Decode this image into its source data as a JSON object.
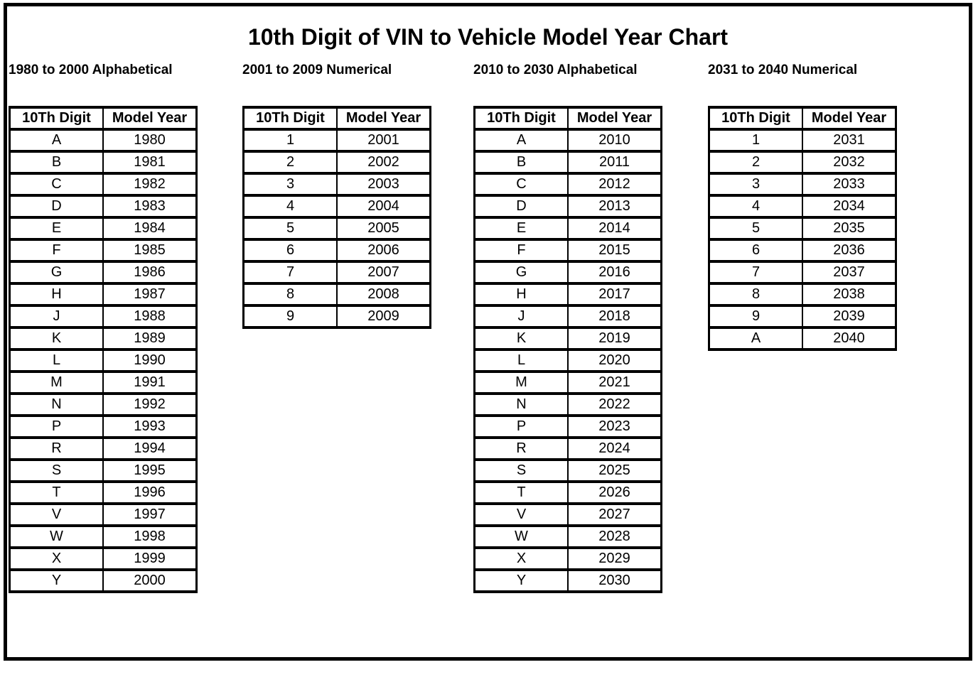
{
  "page": {
    "title": "10th Digit of VIN to Vehicle Model Year Chart"
  },
  "chart_data": [
    {
      "type": "table",
      "section_label": "1980 to 2000 Alphabetical",
      "columns": [
        "10Th Digit",
        "Model Year"
      ],
      "rows": [
        [
          "A",
          "1980"
        ],
        [
          "B",
          "1981"
        ],
        [
          "C",
          "1982"
        ],
        [
          "D",
          "1983"
        ],
        [
          "E",
          "1984"
        ],
        [
          "F",
          "1985"
        ],
        [
          "G",
          "1986"
        ],
        [
          "H",
          "1987"
        ],
        [
          "J",
          "1988"
        ],
        [
          "K",
          "1989"
        ],
        [
          "L",
          "1990"
        ],
        [
          "M",
          "1991"
        ],
        [
          "N",
          "1992"
        ],
        [
          "P",
          "1993"
        ],
        [
          "R",
          "1994"
        ],
        [
          "S",
          "1995"
        ],
        [
          "T",
          "1996"
        ],
        [
          "V",
          "1997"
        ],
        [
          "W",
          "1998"
        ],
        [
          "X",
          "1999"
        ],
        [
          "Y",
          "2000"
        ]
      ]
    },
    {
      "type": "table",
      "section_label": "2001 to 2009 Numerical",
      "columns": [
        "10Th Digit",
        "Model Year"
      ],
      "rows": [
        [
          "1",
          "2001"
        ],
        [
          "2",
          "2002"
        ],
        [
          "3",
          "2003"
        ],
        [
          "4",
          "2004"
        ],
        [
          "5",
          "2005"
        ],
        [
          "6",
          "2006"
        ],
        [
          "7",
          "2007"
        ],
        [
          "8",
          "2008"
        ],
        [
          "9",
          "2009"
        ]
      ]
    },
    {
      "type": "table",
      "section_label": "2010 to 2030 Alphabetical",
      "columns": [
        "10Th Digit",
        "Model Year"
      ],
      "rows": [
        [
          "A",
          "2010"
        ],
        [
          "B",
          "2011"
        ],
        [
          "C",
          "2012"
        ],
        [
          "D",
          "2013"
        ],
        [
          "E",
          "2014"
        ],
        [
          "F",
          "2015"
        ],
        [
          "G",
          "2016"
        ],
        [
          "H",
          "2017"
        ],
        [
          "J",
          "2018"
        ],
        [
          "K",
          "2019"
        ],
        [
          "L",
          "2020"
        ],
        [
          "M",
          "2021"
        ],
        [
          "N",
          "2022"
        ],
        [
          "P",
          "2023"
        ],
        [
          "R",
          "2024"
        ],
        [
          "S",
          "2025"
        ],
        [
          "T",
          "2026"
        ],
        [
          "V",
          "2027"
        ],
        [
          "W",
          "2028"
        ],
        [
          "X",
          "2029"
        ],
        [
          "Y",
          "2030"
        ]
      ]
    },
    {
      "type": "table",
      "section_label": "2031 to 2040 Numerical",
      "columns": [
        "10Th Digit",
        "Model Year"
      ],
      "rows": [
        [
          "1",
          "2031"
        ],
        [
          "2",
          "2032"
        ],
        [
          "3",
          "2033"
        ],
        [
          "4",
          "2034"
        ],
        [
          "5",
          "2035"
        ],
        [
          "6",
          "2036"
        ],
        [
          "7",
          "2037"
        ],
        [
          "8",
          "2038"
        ],
        [
          "9",
          "2039"
        ],
        [
          "A",
          "2040"
        ]
      ]
    }
  ],
  "colors": {
    "text": "#000000",
    "border": "#000000",
    "background": "#ffffff"
  }
}
